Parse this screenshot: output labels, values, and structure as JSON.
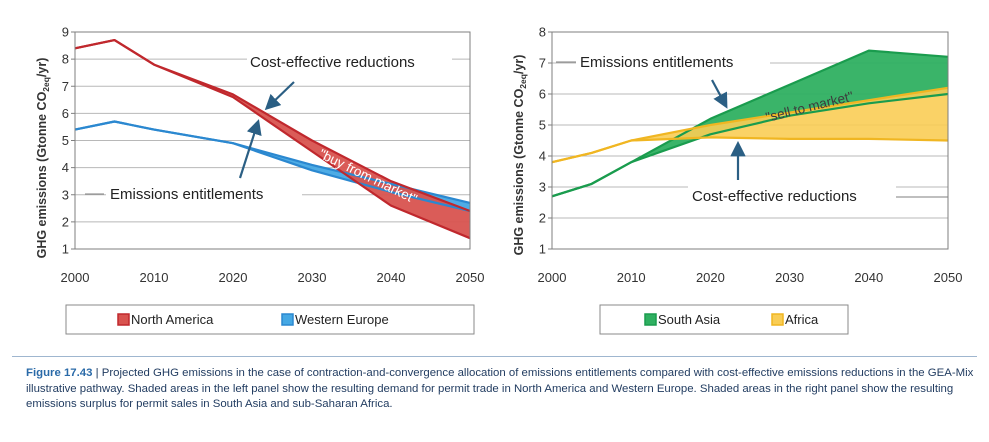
{
  "figure": {
    "caption_label": "Figure 17.43",
    "caption_text": " | Projected GHG emissions in the case of contraction-and-convergence allocation of emissions entitlements compared with cost-effective emissions reductions in the GEA-Mix illustrative pathway. Shaded areas in the left panel show the resulting demand for permit trade in North America and Western Europe. Shaded areas in the right panel show the resulting emissions surplus for permit sales in South Asia and sub-Saharan Africa."
  },
  "colors": {
    "north_america": "#c0282d",
    "north_america_fill": "#d8534f",
    "western_europe": "#2b88d0",
    "western_europe_fill": "#45a8e4",
    "south_asia": "#1a9c4e",
    "south_asia_fill": "#2fb061",
    "africa": "#f0b622",
    "africa_fill": "#f9cd55",
    "grid": "#b8b8b8",
    "annotation_arrow": "#2b5f84"
  },
  "chart_data": [
    {
      "type": "area",
      "ylabel_main": "GHG emissions (Gtonne CO",
      "ylabel_sub1": "2",
      "ylabel_sub2": "eq",
      "ylabel_end": "/yr)",
      "xlim": [
        2000,
        2050
      ],
      "ylim": [
        1,
        9
      ],
      "xticks": [
        "2000",
        "2010",
        "2020",
        "2030",
        "2040",
        "2050"
      ],
      "yticks": [
        "1",
        "2",
        "3",
        "4",
        "5",
        "6",
        "7",
        "8",
        "9"
      ],
      "grid": true,
      "annotations": [
        "Cost-effective reductions",
        "Emissions entitlements",
        "\"buy from market\""
      ],
      "legend": [
        "North America",
        "Western Europe"
      ],
      "series": [
        {
          "name": "North America",
          "role": "Emissions entitlements",
          "x": [
            2000,
            2005,
            2010,
            2020,
            2030,
            2040,
            2050
          ],
          "y": [
            8.4,
            8.7,
            7.8,
            6.6,
            4.6,
            2.6,
            1.4
          ]
        },
        {
          "name": "North America",
          "role": "Cost-effective reductions",
          "x": [
            2000,
            2005,
            2010,
            2020,
            2030,
            2040,
            2050
          ],
          "y": [
            8.4,
            8.7,
            7.8,
            6.7,
            5.0,
            3.5,
            2.4
          ]
        },
        {
          "name": "Western Europe",
          "role": "Emissions entitlements",
          "x": [
            2000,
            2005,
            2010,
            2020,
            2030,
            2040,
            2050
          ],
          "y": [
            5.4,
            5.7,
            5.4,
            4.9,
            3.9,
            3.1,
            2.4
          ]
        },
        {
          "name": "Western Europe",
          "role": "Cost-effective reductions",
          "x": [
            2000,
            2005,
            2010,
            2020,
            2030,
            2040,
            2050
          ],
          "y": [
            5.4,
            5.7,
            5.4,
            4.9,
            4.1,
            3.4,
            2.7
          ]
        }
      ]
    },
    {
      "type": "area",
      "ylabel_main": "GHG emissions (Gtonne CO",
      "ylabel_sub1": "2",
      "ylabel_sub2": "eq",
      "ylabel_end": "/yr)",
      "xlim": [
        2000,
        2050
      ],
      "ylim": [
        1,
        8
      ],
      "xticks": [
        "2000",
        "2010",
        "2020",
        "2030",
        "2040",
        "2050"
      ],
      "yticks": [
        "1",
        "2",
        "3",
        "4",
        "5",
        "6",
        "7",
        "8"
      ],
      "grid": true,
      "annotations": [
        "Emissions entitlements",
        "Cost-effective reductions",
        "\"sell to market\""
      ],
      "legend": [
        "South Asia",
        "Africa"
      ],
      "series": [
        {
          "name": "South Asia",
          "role": "Emissions entitlements",
          "x": [
            2000,
            2005,
            2010,
            2020,
            2030,
            2040,
            2050
          ],
          "y": [
            2.7,
            3.1,
            3.8,
            5.2,
            6.3,
            7.4,
            7.2
          ]
        },
        {
          "name": "South Asia",
          "role": "Cost-effective reductions",
          "x": [
            2000,
            2005,
            2010,
            2020,
            2030,
            2040,
            2050
          ],
          "y": [
            2.7,
            3.1,
            3.8,
            4.7,
            5.3,
            5.7,
            6.0
          ]
        },
        {
          "name": "Africa",
          "role": "Emissions entitlements",
          "x": [
            2000,
            2005,
            2010,
            2020,
            2030,
            2040,
            2050
          ],
          "y": [
            3.8,
            4.1,
            4.5,
            5.0,
            5.4,
            5.8,
            6.2
          ]
        },
        {
          "name": "Africa",
          "role": "Cost-effective reductions",
          "x": [
            2000,
            2005,
            2010,
            2020,
            2030,
            2040,
            2050
          ],
          "y": [
            3.8,
            4.1,
            4.5,
            4.6,
            4.55,
            4.55,
            4.5
          ]
        }
      ]
    }
  ]
}
